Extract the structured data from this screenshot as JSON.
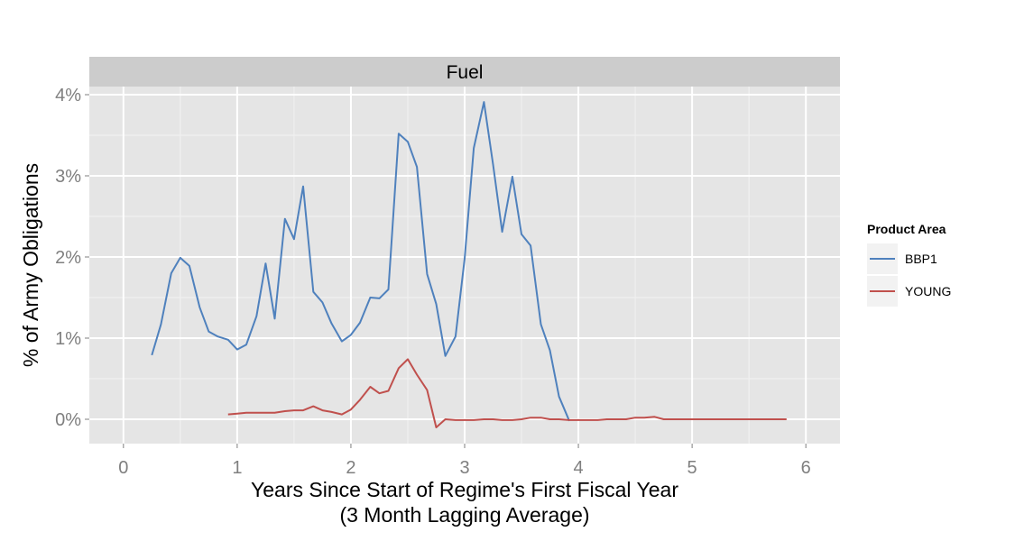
{
  "chart_data": {
    "type": "line",
    "facet": "Fuel",
    "xlabel": "Years Since Start of Regime's First Fiscal Year",
    "xlabel_sub": "(3 Month Lagging Average)",
    "ylabel": "% of Army Obligations",
    "xlim": [
      -0.3,
      6.3
    ],
    "ylim": [
      -0.3,
      4.1
    ],
    "x_ticks": [
      0,
      1,
      2,
      3,
      4,
      5,
      6
    ],
    "x_tick_labels": [
      "0",
      "1",
      "2",
      "3",
      "4",
      "5",
      "6"
    ],
    "y_ticks": [
      0,
      1,
      2,
      3,
      4
    ],
    "y_tick_labels": [
      "0%",
      "1%",
      "2%",
      "3%",
      "4%"
    ],
    "grid": true,
    "legend_title": "Product Area",
    "legend_position": "right",
    "series": [
      {
        "name": "BBP1",
        "color": "#4f81bd",
        "x": [
          0.25,
          0.33,
          0.42,
          0.5,
          0.58,
          0.67,
          0.75,
          0.83,
          0.92,
          1.0,
          1.08,
          1.17,
          1.25,
          1.33,
          1.42,
          1.5,
          1.58,
          1.67,
          1.75,
          1.83,
          1.92,
          2.0,
          2.08,
          2.17,
          2.25,
          2.33,
          2.42,
          2.5,
          2.58,
          2.67,
          2.75,
          2.83,
          2.92,
          3.0,
          3.08,
          3.17,
          3.25,
          3.33,
          3.42,
          3.5,
          3.58,
          3.67,
          3.75,
          3.83,
          3.92
        ],
        "y": [
          0.79,
          1.17,
          1.8,
          1.99,
          1.89,
          1.38,
          1.08,
          1.02,
          0.98,
          0.86,
          0.92,
          1.27,
          1.92,
          1.24,
          2.47,
          2.22,
          2.87,
          1.57,
          1.44,
          1.18,
          0.96,
          1.04,
          1.19,
          1.5,
          1.49,
          1.6,
          3.52,
          3.42,
          3.11,
          1.79,
          1.42,
          0.78,
          1.02,
          1.98,
          3.34,
          3.91,
          3.14,
          2.31,
          2.99,
          2.28,
          2.14,
          1.17,
          0.85,
          0.28,
          -0.02
        ]
      },
      {
        "name": "YOUNG",
        "color": "#c0504d",
        "x": [
          0.92,
          1.0,
          1.08,
          1.17,
          1.25,
          1.33,
          1.42,
          1.5,
          1.58,
          1.67,
          1.75,
          1.83,
          1.92,
          2.0,
          2.08,
          2.17,
          2.25,
          2.33,
          2.42,
          2.5,
          2.58,
          2.67,
          2.75,
          2.83,
          2.92,
          3.0,
          3.08,
          3.17,
          3.25,
          3.33,
          3.42,
          3.5,
          3.58,
          3.67,
          3.75,
          3.83,
          3.92,
          4.0,
          4.08,
          4.17,
          4.25,
          4.33,
          4.42,
          4.5,
          4.58,
          4.67,
          4.75,
          4.83,
          4.92,
          5.0,
          5.08,
          5.17,
          5.25,
          5.33,
          5.42,
          5.5,
          5.58,
          5.67,
          5.75,
          5.83
        ],
        "y": [
          0.06,
          0.07,
          0.08,
          0.08,
          0.08,
          0.08,
          0.1,
          0.11,
          0.11,
          0.16,
          0.11,
          0.09,
          0.06,
          0.12,
          0.24,
          0.4,
          0.32,
          0.35,
          0.63,
          0.74,
          0.55,
          0.36,
          -0.1,
          0.0,
          -0.01,
          -0.01,
          -0.01,
          0.0,
          0.0,
          -0.01,
          -0.01,
          0.0,
          0.02,
          0.02,
          0.0,
          0.0,
          -0.01,
          -0.01,
          -0.01,
          -0.01,
          0.0,
          0.0,
          0.0,
          0.02,
          0.02,
          0.03,
          0.0,
          0.0,
          0.0,
          0.0,
          0.0,
          0.0,
          0.0,
          0.0,
          0.0,
          0.0,
          0.0,
          0.0,
          0.0,
          0.0
        ]
      }
    ]
  }
}
